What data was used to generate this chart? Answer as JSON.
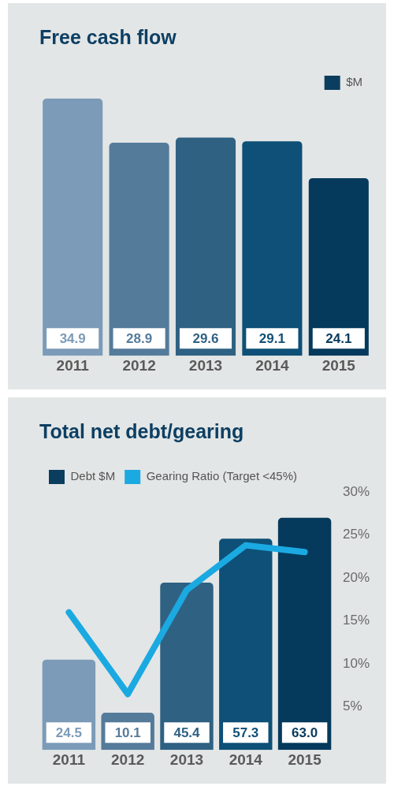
{
  "chart_data": [
    {
      "type": "bar",
      "title": "Free cash flow",
      "categories": [
        "2011",
        "2012",
        "2013",
        "2014",
        "2015"
      ],
      "series": [
        {
          "name": "$M",
          "color": "#0b3d5e",
          "colors": [
            "#7b9bb8",
            "#557b9b",
            "#2f6183",
            "#0e5077",
            "#053a5c"
          ],
          "values": [
            34.9,
            28.9,
            29.6,
            29.1,
            24.1
          ],
          "value_labels": [
            "34.9",
            "28.9",
            "29.6",
            "29.1",
            "24.1"
          ]
        }
      ],
      "legend": "top right",
      "grid": false
    },
    {
      "type": "bar",
      "title": "Total net debt/gearing",
      "categories": [
        "2011",
        "2012",
        "2013",
        "2014",
        "2015"
      ],
      "series": [
        {
          "name": "Debt $M",
          "color": "#0b3d5e",
          "colors": [
            "#7b9bb8",
            "#557b9b",
            "#2f6183",
            "#0e5077",
            "#053a5c"
          ],
          "values": [
            24.5,
            10.1,
            45.4,
            57.3,
            63.0
          ],
          "value_labels": [
            "24.5",
            "10.1",
            "45.4",
            "57.3",
            "63.0"
          ]
        },
        {
          "name": "Gearing Ratio (Target <45%)",
          "type": "line",
          "axis": "y2",
          "color": "#1ba9e1",
          "values": [
            16.0,
            6.5,
            18.6,
            23.8,
            23.0
          ]
        }
      ],
      "y2lim": [
        0,
        30
      ],
      "y2ticks": [
        {
          "value": 5,
          "label": "5%"
        },
        {
          "value": 10,
          "label": "10%"
        },
        {
          "value": 15,
          "label": "15%"
        },
        {
          "value": 20,
          "label": "20%"
        },
        {
          "value": 25,
          "label": "25%"
        },
        {
          "value": 30,
          "label": "30%"
        }
      ],
      "legend": "top left",
      "grid": false,
      "marker": "none"
    }
  ]
}
